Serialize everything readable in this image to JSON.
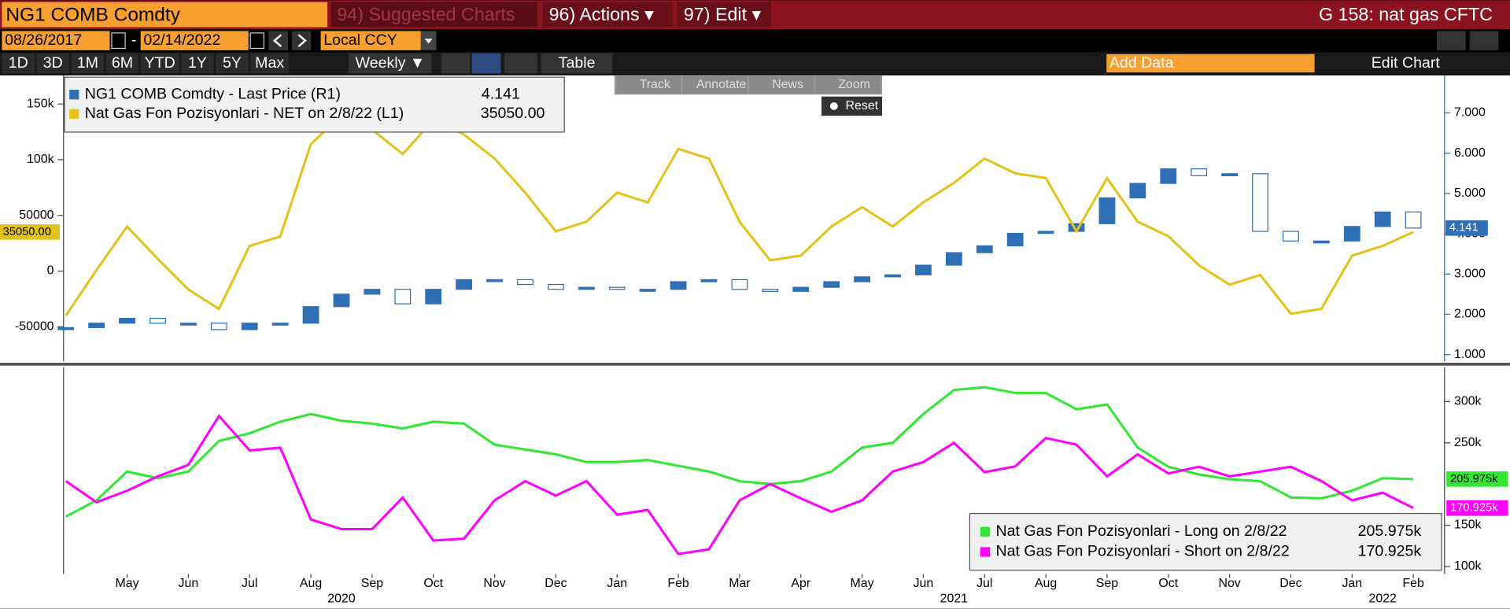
{
  "toolbar": {
    "ticker": "NG1 COMB Comdty",
    "menu": [
      "94) Suggested Charts",
      "96) Actions ▾",
      "97) Edit ▾"
    ],
    "page_title": "G 158: nat gas CFTC",
    "start_date": "08/26/2017",
    "date_separator": "-",
    "end_date": "02/14/2022",
    "currency": "Local CCY",
    "periods": [
      "1D",
      "3D",
      "1M",
      "6M",
      "YTD",
      "1Y",
      "5Y",
      "Max"
    ],
    "frequency": "Weekly ▼",
    "table": "Table",
    "add_data": "Add Data",
    "edit_chart": "Edit Chart",
    "chart_tools": [
      "Track",
      "Annotate",
      "News",
      "Zoom"
    ],
    "reset": "Reset"
  },
  "chart_data": [
    {
      "type": "candlestick_line",
      "ylim": [
        -81000,
        174000
      ],
      "yticks": [
        {
          "value": -50000,
          "label": "-50000"
        },
        0,
        50000,
        {
          "value": 100000,
          "label": "100k"
        },
        {
          "value": 150000,
          "label": "150k"
        }
      ],
      "y2lim": [
        0.833,
        7.885
      ],
      "y2ticks": [
        {
          "value": 1,
          "label": "1.000"
        },
        {
          "value": 2,
          "label": "2.000"
        },
        {
          "value": 3,
          "label": "3.000"
        },
        {
          "value": 4,
          "label": "4.000"
        },
        {
          "value": 5,
          "label": "5.000"
        },
        {
          "value": 6,
          "label": "6.000"
        },
        {
          "value": 7,
          "label": "7.000"
        }
      ],
      "series": [
        {
          "name": "NG1 COMB Comdty - Last Price (R1)",
          "type": "candlestick",
          "axis": "y2",
          "color": "#2f6fb5",
          "open": [
            1.62,
            1.67,
            1.78,
            1.9,
            1.78,
            1.78,
            1.62,
            1.78,
            1.78,
            2.19,
            2.5,
            2.62,
            2.26,
            2.62,
            2.86,
            2.86,
            2.74,
            2.62,
            2.67,
            2.62,
            2.62,
            2.81,
            2.86,
            2.62,
            2.57,
            2.67,
            2.81,
            2.93,
            2.98,
            3.22,
            3.53,
            3.7,
            4.01,
            4.06,
            4.25,
            4.89,
            5.25,
            5.61,
            5.44,
            5.49,
            4.06,
            3.82,
            3.82,
            4.18,
            4.54
          ],
          "close": [
            1.67,
            1.78,
            1.9,
            1.78,
            1.78,
            1.62,
            1.78,
            1.78,
            2.19,
            2.5,
            2.62,
            2.26,
            2.62,
            2.86,
            2.86,
            2.74,
            2.62,
            2.67,
            2.62,
            2.62,
            2.81,
            2.86,
            2.62,
            2.57,
            2.67,
            2.81,
            2.93,
            2.98,
            3.22,
            3.53,
            3.7,
            4.01,
            4.06,
            4.25,
            4.89,
            5.25,
            5.61,
            5.44,
            5.49,
            4.06,
            3.82,
            3.82,
            4.18,
            4.54,
            4.141
          ]
        },
        {
          "name": "Nat Gas Fon Pozisyonlari - NET on 2/8/22 (L1)",
          "type": "line",
          "color": "#e3c21c",
          "last_value_label": "35050.00",
          "values": [
            -40000,
            1000,
            40000,
            11000,
            -16500,
            -34000,
            22600,
            31000,
            114000,
            140000,
            127000,
            105000,
            135700,
            122600,
            101000,
            70400,
            35700,
            44300,
            70400,
            61700,
            109600,
            101000,
            44300,
            9600,
            13900,
            40000,
            57400,
            40000,
            61700,
            79100,
            101000,
            87800,
            83500,
            35700,
            83500,
            44300,
            31300,
            5200,
            -12200,
            -3500,
            -38300,
            -33900,
            13900,
            22600,
            35050
          ]
        }
      ]
    },
    {
      "type": "line",
      "categories": [
        null,
        null,
        "May",
        null,
        "Jun",
        null,
        "Jul",
        null,
        "Aug",
        null,
        "Sep",
        null,
        "Oct",
        null,
        "Nov",
        null,
        "Dec",
        null,
        "Jan",
        null,
        "Feb",
        null,
        "Mar",
        null,
        "Apr",
        null,
        "May",
        null,
        "Jun",
        null,
        "Jul",
        null,
        "Aug",
        null,
        "Sep",
        null,
        "Oct",
        null,
        "Nov",
        null,
        "Dec",
        null,
        "Jan",
        null,
        "Feb"
      ],
      "years": [
        "2020",
        "2021",
        "2022"
      ],
      "ylim": [
        90700,
        343000
      ],
      "yticks": [
        {
          "value": 100000,
          "label": "100k"
        },
        {
          "value": 150000,
          "label": "150k"
        },
        {
          "value": 250000,
          "label": "250k"
        },
        {
          "value": 300000,
          "label": "300k"
        }
      ],
      "series": [
        {
          "name": "Nat Gas Fon Pozisyonlari - Long on 2/8/22",
          "color": "#33e633",
          "last_value_label": "205.975k",
          "values": [
            160500,
            180200,
            215100,
            207000,
            215100,
            252300,
            261600,
            275600,
            284900,
            276700,
            273300,
            267400,
            275600,
            273300,
            247700,
            241900,
            236000,
            226700,
            226700,
            229100,
            222100,
            215100,
            203500,
            200000,
            203500,
            215100,
            244200,
            250000,
            284900,
            314000,
            317400,
            310500,
            310500,
            290700,
            296500,
            244200,
            220900,
            211600,
            205800,
            203500,
            183700,
            182600,
            191900,
            207000,
            205975
          ]
        },
        {
          "name": "Nat Gas Fon Pozisyonlari - Short on 2/8/22",
          "color": "#ff00ff",
          "last_value_label": "170.925k",
          "values": [
            203500,
            177900,
            191900,
            209300,
            223300,
            282600,
            240700,
            244200,
            157000,
            145300,
            145300,
            183700,
            131400,
            133700,
            180200,
            203500,
            186000,
            203500,
            162800,
            168600,
            115100,
            120900,
            180200,
            200000,
            182600,
            166300,
            180200,
            215100,
            226700,
            250000,
            214400,
            221400,
            255800,
            247700,
            209300,
            236000,
            212800,
            221000,
            209300,
            215100,
            221000,
            203500,
            180200,
            189500,
            170925
          ]
        }
      ]
    }
  ]
}
